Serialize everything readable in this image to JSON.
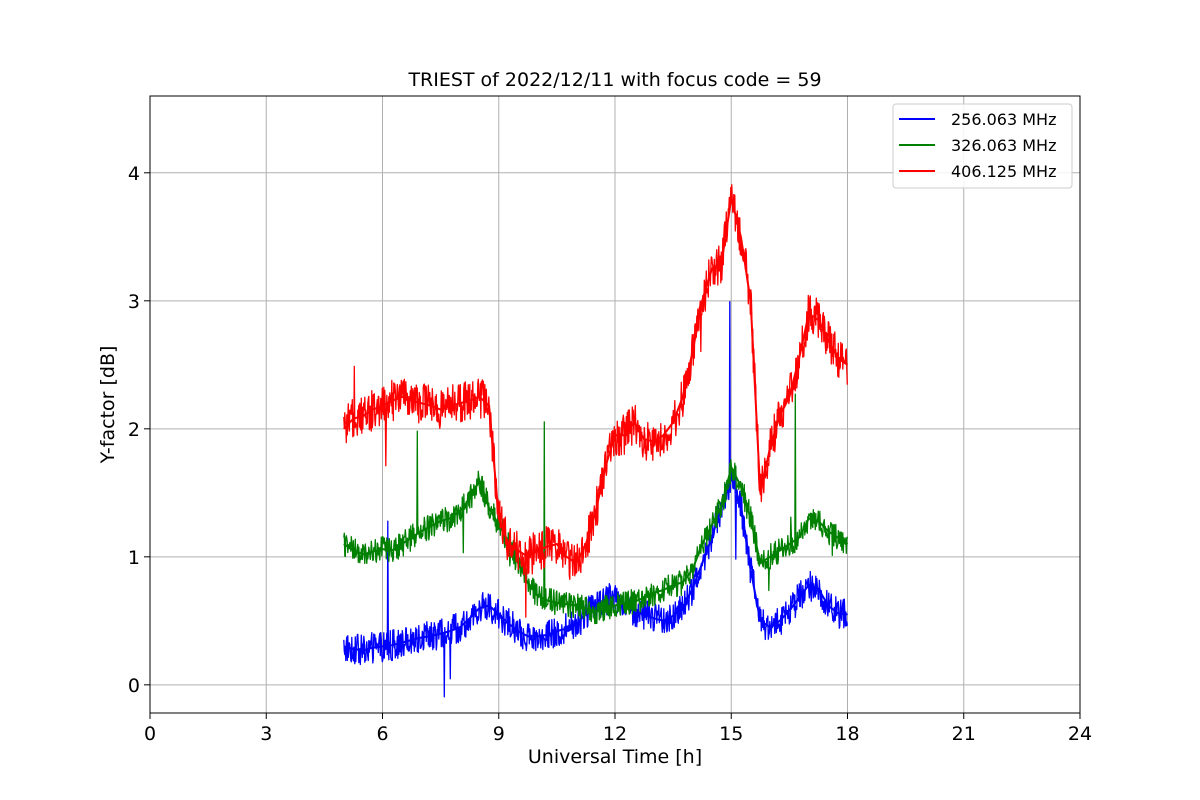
{
  "chart_data": {
    "type": "line",
    "title": "TRIEST of 2022/12/11 with focus code = 59",
    "xlabel": "Universal Time [h]",
    "ylabel": "Y-factor [dB]",
    "xlim": [
      0,
      24
    ],
    "ylim": [
      -0.22,
      4.6
    ],
    "xticks": [
      0,
      3,
      6,
      9,
      12,
      15,
      18,
      21,
      24
    ],
    "yticks": [
      0,
      1,
      2,
      3,
      4
    ],
    "grid": true,
    "legend_position": "top-right",
    "series": [
      {
        "name": "256.063 MHz",
        "color": "#0000ff",
        "x": [
          5.0,
          5.25,
          5.5,
          5.75,
          6.0,
          6.25,
          6.5,
          6.75,
          7.0,
          7.25,
          7.5,
          7.75,
          8.0,
          8.25,
          8.5,
          8.75,
          9.0,
          9.25,
          9.5,
          9.75,
          10.0,
          10.25,
          10.5,
          10.75,
          11.0,
          11.25,
          11.5,
          11.75,
          12.0,
          12.25,
          12.5,
          12.75,
          13.0,
          13.25,
          13.5,
          13.75,
          14.0,
          14.25,
          14.5,
          14.75,
          15.0,
          15.25,
          15.5,
          15.75,
          16.0,
          16.25,
          16.5,
          16.75,
          17.0,
          17.25,
          17.5,
          17.75,
          18.0
        ],
        "y": [
          0.3,
          0.28,
          0.27,
          0.29,
          0.3,
          0.31,
          0.33,
          0.35,
          0.37,
          0.38,
          0.4,
          0.42,
          0.45,
          0.52,
          0.6,
          0.62,
          0.55,
          0.48,
          0.42,
          0.38,
          0.38,
          0.39,
          0.42,
          0.44,
          0.47,
          0.56,
          0.62,
          0.66,
          0.7,
          0.62,
          0.57,
          0.55,
          0.52,
          0.5,
          0.54,
          0.6,
          0.75,
          0.95,
          1.15,
          1.4,
          1.62,
          1.4,
          0.9,
          0.5,
          0.45,
          0.5,
          0.58,
          0.68,
          0.78,
          0.75,
          0.62,
          0.56,
          0.55
        ]
      },
      {
        "name": "326.063 MHz",
        "color": "#008000",
        "x": [
          5.0,
          5.25,
          5.5,
          5.75,
          6.0,
          6.25,
          6.5,
          6.75,
          7.0,
          7.25,
          7.5,
          7.75,
          8.0,
          8.25,
          8.5,
          8.75,
          9.0,
          9.25,
          9.5,
          9.75,
          10.0,
          10.25,
          10.5,
          10.75,
          11.0,
          11.25,
          11.5,
          11.75,
          12.0,
          12.25,
          12.5,
          12.75,
          13.0,
          13.25,
          13.5,
          13.75,
          14.0,
          14.25,
          14.5,
          14.75,
          15.0,
          15.25,
          15.5,
          15.75,
          16.0,
          16.25,
          16.5,
          16.75,
          17.0,
          17.25,
          17.5,
          17.75,
          18.0
        ],
        "y": [
          1.1,
          1.05,
          1.02,
          1.04,
          1.06,
          1.05,
          1.1,
          1.15,
          1.2,
          1.24,
          1.28,
          1.3,
          1.36,
          1.45,
          1.6,
          1.38,
          1.25,
          1.12,
          0.95,
          0.8,
          0.7,
          0.66,
          0.64,
          0.63,
          0.62,
          0.6,
          0.57,
          0.6,
          0.62,
          0.64,
          0.65,
          0.68,
          0.72,
          0.74,
          0.78,
          0.8,
          0.9,
          1.1,
          1.25,
          1.4,
          1.7,
          1.55,
          1.3,
          0.95,
          1.0,
          1.05,
          1.1,
          1.15,
          1.3,
          1.28,
          1.2,
          1.15,
          1.1
        ]
      },
      {
        "name": "406.125 MHz",
        "color": "#ff0000",
        "x": [
          5.0,
          5.25,
          5.5,
          5.75,
          6.0,
          6.25,
          6.5,
          6.75,
          7.0,
          7.25,
          7.5,
          7.75,
          8.0,
          8.25,
          8.5,
          8.75,
          9.0,
          9.25,
          9.5,
          9.75,
          10.0,
          10.25,
          10.5,
          10.75,
          11.0,
          11.25,
          11.5,
          11.75,
          12.0,
          12.25,
          12.5,
          12.75,
          13.0,
          13.25,
          13.5,
          13.75,
          14.0,
          14.25,
          14.5,
          14.75,
          15.0,
          15.25,
          15.5,
          15.75,
          16.0,
          16.25,
          16.5,
          16.75,
          17.0,
          17.25,
          17.5,
          17.75,
          18.0
        ],
        "y": [
          2.0,
          2.08,
          2.1,
          2.15,
          2.18,
          2.22,
          2.25,
          2.22,
          2.2,
          2.18,
          2.15,
          2.18,
          2.2,
          2.22,
          2.25,
          2.18,
          1.3,
          1.1,
          1.05,
          1.0,
          1.05,
          1.08,
          1.1,
          1.0,
          0.95,
          1.1,
          1.35,
          1.7,
          1.95,
          1.95,
          2.05,
          1.92,
          1.9,
          1.95,
          2.05,
          2.25,
          2.6,
          3.0,
          3.25,
          3.3,
          3.8,
          3.5,
          3.0,
          1.5,
          1.85,
          2.1,
          2.25,
          2.55,
          2.9,
          2.85,
          2.7,
          2.55,
          2.5
        ]
      }
    ]
  }
}
